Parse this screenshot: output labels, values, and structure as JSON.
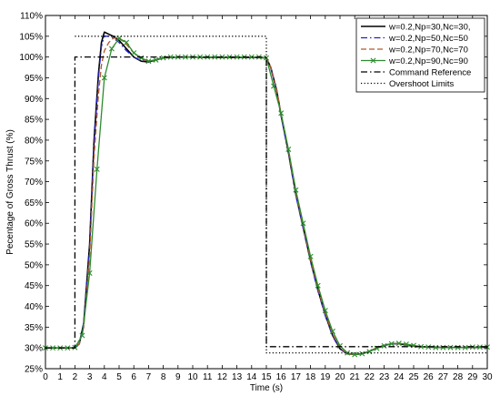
{
  "chart_data": {
    "type": "line",
    "xlabel": "Time (s)",
    "ylabel": "Pecentage of Gross Thrust (%)",
    "xlim": [
      0,
      30
    ],
    "ylim": [
      25,
      110
    ],
    "xticks": [
      0,
      1,
      2,
      3,
      4,
      5,
      6,
      7,
      8,
      9,
      10,
      11,
      12,
      13,
      14,
      15,
      16,
      17,
      18,
      19,
      20,
      21,
      22,
      23,
      24,
      25,
      26,
      27,
      28,
      29,
      30
    ],
    "yticks": [
      25,
      30,
      35,
      40,
      45,
      50,
      55,
      60,
      65,
      70,
      75,
      80,
      85,
      90,
      95,
      100,
      105,
      110
    ],
    "ytick_suffix": "%",
    "grid": false,
    "legend_position": "top-right",
    "series": [
      {
        "name": "w=0.2,Np=30,Nc=30,",
        "color": "#000000",
        "style": "solid",
        "marker": "none",
        "x": [
          0,
          1,
          2,
          2.3,
          2.6,
          3,
          3.3,
          3.6,
          3.8,
          4,
          4.3,
          4.6,
          5,
          5.5,
          6,
          6.5,
          7,
          7.5,
          8,
          9,
          10,
          11,
          12,
          13,
          14,
          15,
          15.3,
          15.7,
          16,
          16.5,
          17,
          17.5,
          18,
          18.5,
          19,
          19.5,
          20,
          20.5,
          21,
          21.5,
          22,
          22.5,
          23,
          23.5,
          24,
          24.5,
          25,
          26,
          27,
          28,
          29,
          30
        ],
        "y": [
          30,
          30,
          30,
          31,
          36,
          55,
          80,
          96,
          103.5,
          106,
          105.5,
          105,
          104,
          102,
          100,
          99,
          98.8,
          99.3,
          99.8,
          100,
          100,
          99.9,
          99.9,
          99.9,
          99.9,
          99.8,
          97.5,
          92,
          86,
          77,
          67,
          59,
          51,
          44,
          38,
          33,
          29.8,
          28.6,
          28.4,
          28.6,
          29.2,
          30,
          30.6,
          31,
          31,
          30.7,
          30.4,
          30.2,
          30.1,
          30.1,
          30.1,
          30.2
        ]
      },
      {
        "name": "w=0.2,Np=50,Nc=50",
        "color": "#2020d0",
        "style": "dashdot",
        "marker": "none",
        "x": [
          0,
          1,
          2,
          2.3,
          2.6,
          3,
          3.3,
          3.6,
          3.8,
          4,
          4.3,
          4.6,
          5,
          5.5,
          6,
          6.5,
          7,
          7.5,
          8,
          9,
          10,
          11,
          12,
          13,
          14,
          15,
          15.3,
          15.7,
          16,
          16.5,
          17,
          17.5,
          18,
          18.5,
          19,
          19.5,
          20,
          20.5,
          21,
          21.5,
          22,
          22.5,
          23,
          23.5,
          24,
          24.5,
          25,
          26,
          27,
          28,
          29,
          30
        ],
        "y": [
          30,
          30,
          30,
          31,
          36,
          54,
          79,
          95,
          102.5,
          105,
          105,
          104.6,
          103.5,
          101.5,
          100,
          99.2,
          98.9,
          99.4,
          99.8,
          100,
          100,
          99.9,
          99.9,
          99.9,
          99.9,
          99.8,
          97.3,
          91.8,
          85.7,
          76.7,
          66.7,
          58.7,
          50.7,
          43.7,
          37.7,
          32.8,
          29.7,
          28.5,
          28.4,
          28.6,
          29.2,
          30,
          30.6,
          31,
          31,
          30.7,
          30.4,
          30.2,
          30.1,
          30.1,
          30.1,
          30.2
        ]
      },
      {
        "name": "w=0.2,Np=70,Nc=70",
        "color": "#b05a2a",
        "style": "dashed",
        "marker": "none",
        "x": [
          0,
          1,
          2,
          2.3,
          2.6,
          3,
          3.3,
          3.6,
          3.8,
          4,
          4.3,
          4.6,
          5,
          5.5,
          6,
          6.5,
          7,
          7.5,
          8,
          9,
          10,
          11,
          12,
          13,
          14,
          15,
          15.3,
          15.7,
          16,
          16.5,
          17,
          17.5,
          18,
          18.5,
          19,
          19.5,
          20,
          20.5,
          21,
          21.5,
          22,
          22.5,
          23,
          23.5,
          24,
          24.5,
          25,
          26,
          27,
          28,
          29,
          30
        ],
        "y": [
          30,
          30,
          30,
          31,
          35,
          52,
          76,
          91,
          98,
          101.5,
          103.5,
          104.5,
          104.7,
          103,
          101,
          99.5,
          99,
          99.4,
          99.8,
          100,
          100,
          99.9,
          99.9,
          99.9,
          99.9,
          99.8,
          97.6,
          92.3,
          86.3,
          77.3,
          67.3,
          59.3,
          51.3,
          44.3,
          38.3,
          33.3,
          30,
          28.6,
          28.4,
          28.6,
          29.2,
          30,
          30.6,
          31,
          31,
          30.7,
          30.4,
          30.2,
          30.1,
          30.1,
          30.1,
          30.2
        ]
      },
      {
        "name": "w=0.2,Np=90,Nc=90",
        "color": "#2e8b2e",
        "style": "solid",
        "marker": "x",
        "x": [
          0,
          0.5,
          1,
          1.5,
          2,
          2.5,
          3,
          3.5,
          4,
          4.5,
          5,
          5.5,
          6,
          6.5,
          7,
          7.5,
          8,
          8.5,
          9,
          9.5,
          10,
          10.5,
          11,
          11.5,
          12,
          12.5,
          13,
          13.5,
          14,
          14.5,
          15,
          15.5,
          16,
          16.5,
          17,
          17.5,
          18,
          18.5,
          19,
          19.5,
          20,
          20.5,
          21,
          21.5,
          22,
          22.5,
          23,
          23.5,
          24,
          24.5,
          25,
          25.5,
          26,
          26.5,
          27,
          27.5,
          28,
          28.5,
          29,
          29.5,
          30
        ],
        "y": [
          30,
          30,
          30,
          30,
          30.1,
          33,
          48,
          73,
          95,
          102,
          104.5,
          103.5,
          101,
          99.8,
          99,
          99.3,
          99.8,
          100,
          100,
          100,
          100,
          100,
          100,
          100,
          100,
          100,
          100,
          100,
          100,
          100,
          99.8,
          93,
          86.5,
          77.8,
          68,
          60,
          52,
          45,
          39,
          34,
          30.5,
          28.8,
          28.4,
          28.6,
          29.1,
          29.9,
          30.5,
          31,
          31.1,
          30.9,
          30.6,
          30.3,
          30.2,
          30.1,
          30.1,
          30.1,
          30.1,
          30.1,
          30.2,
          30.2,
          30.2
        ]
      },
      {
        "name": "Command Reference",
        "color": "#000000",
        "style": "dashdot",
        "marker": "none",
        "x": [
          0,
          2,
          2,
          15,
          15,
          30
        ],
        "y": [
          30,
          30,
          100,
          100,
          30.3,
          30.3
        ]
      },
      {
        "name": "Overshoot Limits",
        "color": "#000000",
        "style": "dotted",
        "marker": "none",
        "x": [
          2,
          15,
          15,
          30
        ],
        "y": [
          105,
          105,
          28.8,
          28.8
        ]
      }
    ]
  }
}
